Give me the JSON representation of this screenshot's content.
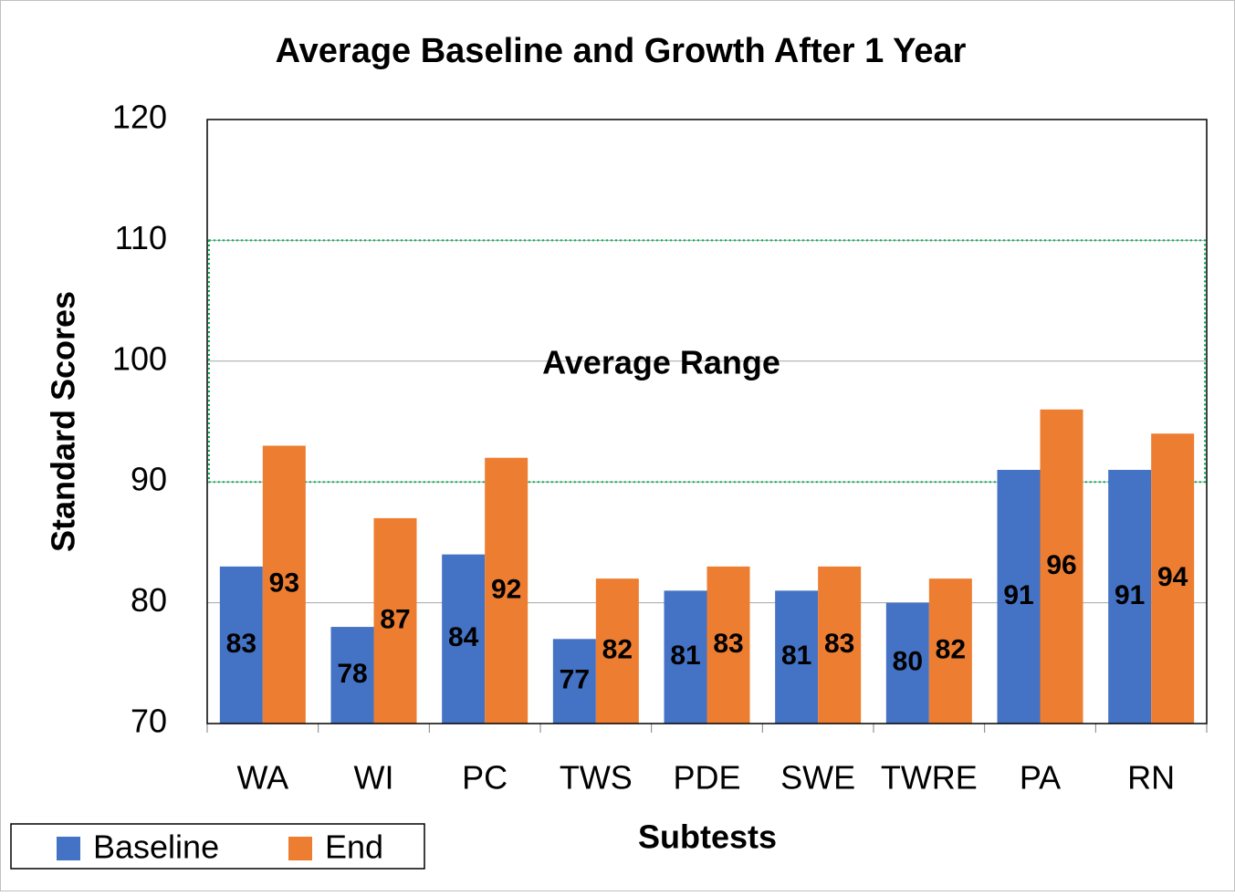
{
  "chart_data": {
    "type": "bar",
    "title": "Average Baseline and Growth After 1 Year",
    "x_label": "Subtests",
    "y_label": "Standard Scores",
    "categories": [
      "WA",
      "WI",
      "PC",
      "TWS",
      "PDE",
      "SWE",
      "TWRE",
      "PA",
      "RN"
    ],
    "series": [
      {
        "name": "Baseline",
        "color": "#4472c4",
        "values": [
          83,
          78,
          84,
          77,
          81,
          81,
          80,
          91,
          91
        ]
      },
      {
        "name": "End",
        "color": "#ed7d31",
        "values": [
          93,
          87,
          92,
          82,
          83,
          83,
          82,
          96,
          94
        ]
      }
    ],
    "ylim": [
      70,
      120
    ],
    "yticks": [
      70,
      80,
      90,
      100,
      110,
      120
    ],
    "grid": true,
    "bands": [
      {
        "label": "Average Range",
        "from": 90,
        "to": 110,
        "color": "#00b050"
      }
    ],
    "legend": "bottom-left"
  }
}
